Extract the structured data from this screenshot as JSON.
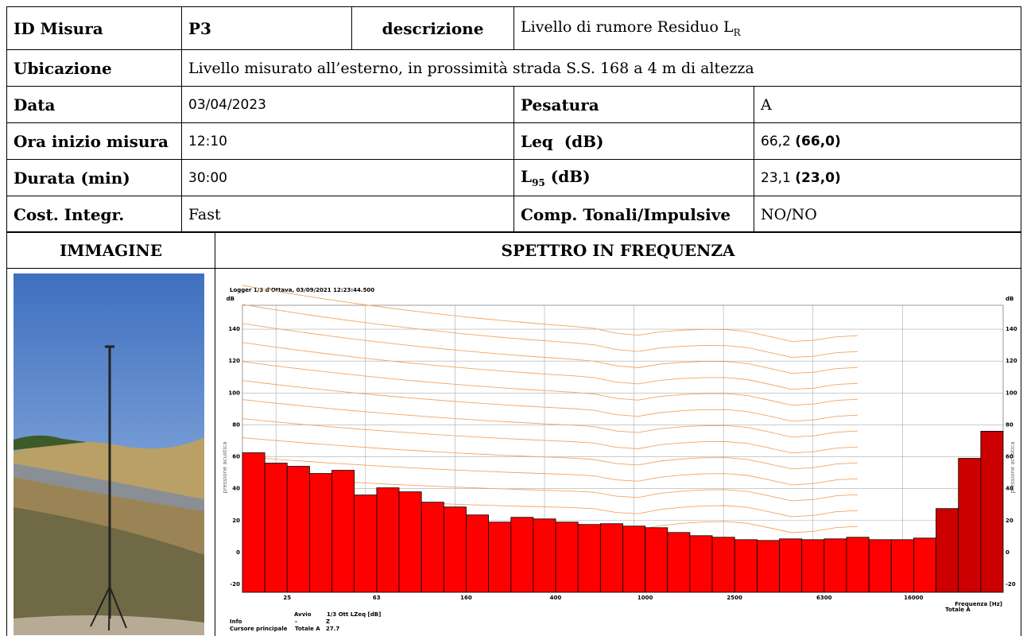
{
  "table": {
    "id_label": "ID Misura",
    "id": "P3",
    "descr_label": "descrizione",
    "descr": "Livello di rumore Residuo L",
    "descr_sub": "R",
    "place_label": "Ubicazione",
    "place": "Livello misurato all’esterno, in prossimità strada S.S. 168 a 4 m di altezza",
    "date_label": "Data",
    "date": "03/04/2023",
    "weight_label": "Pesatura",
    "weight": "A",
    "start_label": "Ora inizio misura",
    "start": "12:10",
    "leq_label": "Leq  (dB)",
    "leq": "66,2",
    "leq_round": "(66,0)",
    "duration_label": "Durata (min)",
    "duration": "30:00",
    "l95_label": "L",
    "l95_sub": "95",
    "l95_unit": " (dB)",
    "l95": "23,1",
    "l95_round": "(23,0)",
    "integr_label": "Cost. Integr.",
    "integr": "Fast",
    "tonal_label": "Comp. Tonali/Impulsive",
    "tonal": "NO/NO"
  },
  "image_label": "IMMAGINE",
  "spectrum": {
    "type": "bar",
    "title": "SPETTRO IN FREQUENZA",
    "subtitle": "Logger 1/3 d'Ottava, 03/09/2021 12:23:44.500",
    "y_unit": "dB",
    "ylabel": "pressione acustica",
    "xlabel": "Frequenza [Hz]",
    "total_label": "Totale A",
    "categories": [
      null,
      "25",
      null,
      null,
      null,
      "63",
      null,
      null,
      null,
      "160",
      null,
      null,
      null,
      "400",
      null,
      null,
      null,
      "1000",
      null,
      null,
      null,
      "2500",
      null,
      null,
      null,
      "6300",
      null,
      null,
      null,
      "16000",
      null,
      null,
      null,
      null
    ],
    "values": [
      62.5,
      56,
      54,
      49.5,
      51.5,
      36,
      40.5,
      38,
      31.5,
      28.5,
      23.5,
      19,
      22,
      21,
      19,
      17.5,
      18,
      16.5,
      15.5,
      12.5,
      10.5,
      9.5,
      8,
      7.5,
      8.5,
      8,
      8.5,
      9.5,
      8,
      8,
      9,
      27.5,
      59,
      76
    ],
    "colors": [
      "#ff0000",
      "#ff0000",
      "#ff0000",
      "#ff0000",
      "#ff0000",
      "#ff0000",
      "#ff0000",
      "#ff0000",
      "#ff0000",
      "#ff0000",
      "#ff0000",
      "#ff0000",
      "#ff0000",
      "#ff0000",
      "#ff0000",
      "#ff0000",
      "#ff0000",
      "#ff0000",
      "#ff0000",
      "#ff0000",
      "#ff0000",
      "#ff0000",
      "#ff0000",
      "#ff0000",
      "#ff0000",
      "#ff0000",
      "#ff0000",
      "#ff0000",
      "#ff0000",
      "#ff0000",
      "#ff0000",
      "#cc0000",
      "#cc0000",
      "#cc0000"
    ],
    "ylim": [
      -25,
      155
    ],
    "yticks": [
      -20,
      0,
      20,
      40,
      60,
      80,
      100,
      120,
      140
    ],
    "grid": true,
    "footer": {
      "start": "Avvio",
      "measure": "1/3 Ott LZeq [dB]",
      "info": "Info",
      "info_a": "-",
      "info_b": "Z",
      "cursor": "Cursore principale",
      "cursor_a": "Totale A",
      "cursor_b": "27.7"
    }
  }
}
